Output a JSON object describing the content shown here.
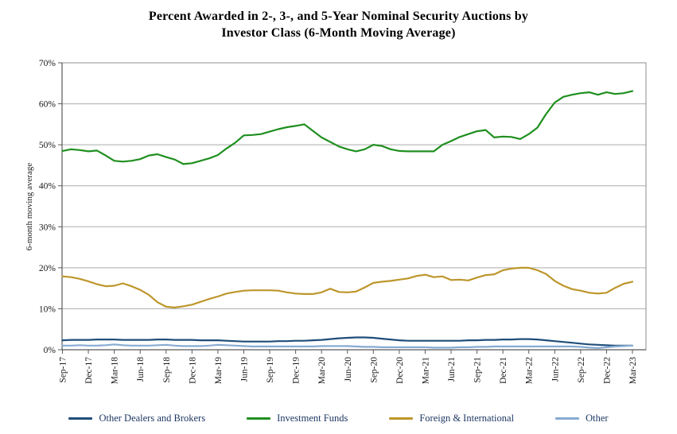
{
  "title_line1": "Percent Awarded in 2-, 3-, and 5-Year Nominal Security Auctions by",
  "title_line2": "Investor Class (6-Month Moving Average)",
  "chart_data": {
    "type": "line",
    "title": "Percent Awarded in 2-, 3-, and 5-Year Nominal Security Auctions by Investor Class (6-Month Moving Average)",
    "ylabel": "6-month moving average",
    "xlabel": "",
    "ylim": [
      0,
      70
    ],
    "y_tick_labels": [
      "0%",
      "10%",
      "20%",
      "30%",
      "40%",
      "50%",
      "60%",
      "70%"
    ],
    "x_tick_labels": [
      "Sep-17",
      "Dec-17",
      "Mar-18",
      "Jun-18",
      "Sep-18",
      "Dec-18",
      "Mar-19",
      "Jun-19",
      "Sep-19",
      "Dec-19",
      "Mar-20",
      "Jun-20",
      "Sep-20",
      "Dec-20",
      "Mar-21",
      "Jun-21",
      "Sep-21",
      "Dec-21",
      "Mar-22",
      "Jun-22",
      "Sep-22",
      "Dec-22",
      "Mar-23"
    ],
    "x_unit": "monthly (labels shown quarterly)",
    "points_per_series": 67,
    "grid": "horizontal",
    "legend_position": "bottom",
    "series": [
      {
        "name": "Other Dealers and Brokers",
        "color": "#1F4E79",
        "values": [
          2.3,
          2.4,
          2.4,
          2.4,
          2.5,
          2.5,
          2.5,
          2.4,
          2.4,
          2.4,
          2.4,
          2.5,
          2.5,
          2.4,
          2.4,
          2.4,
          2.3,
          2.3,
          2.3,
          2.2,
          2.1,
          2.0,
          2.0,
          2.0,
          2.0,
          2.1,
          2.1,
          2.2,
          2.2,
          2.3,
          2.4,
          2.6,
          2.8,
          2.9,
          3.0,
          3.0,
          2.9,
          2.7,
          2.5,
          2.3,
          2.2,
          2.2,
          2.2,
          2.2,
          2.2,
          2.2,
          2.2,
          2.3,
          2.3,
          2.4,
          2.4,
          2.5,
          2.5,
          2.6,
          2.6,
          2.5,
          2.3,
          2.1,
          1.9,
          1.7,
          1.5,
          1.3,
          1.2,
          1.1,
          1.0,
          1.0,
          1.0
        ]
      },
      {
        "name": "Investment Funds",
        "color": "#1F8F1F",
        "values": [
          48.5,
          48.9,
          48.7,
          48.4,
          48.6,
          47.4,
          46.1,
          45.9,
          46.1,
          46.5,
          47.4,
          47.7,
          47.0,
          46.4,
          45.3,
          45.5,
          46.1,
          46.7,
          47.5,
          49.1,
          50.5,
          52.3,
          52.4,
          52.6,
          53.2,
          53.8,
          54.3,
          54.6,
          55.0,
          53.4,
          51.8,
          50.7,
          49.6,
          48.9,
          48.4,
          48.9,
          50.0,
          49.7,
          48.9,
          48.5,
          48.4,
          48.4,
          48.4,
          48.4,
          50.0,
          50.9,
          51.9,
          52.6,
          53.3,
          53.6,
          51.8,
          52.0,
          51.9,
          51.4,
          52.6,
          54.2,
          57.5,
          60.3,
          61.7,
          62.2,
          62.6,
          62.8,
          62.2,
          62.8,
          62.4,
          62.6,
          63.1
        ]
      },
      {
        "name": "Foreign & International",
        "color": "#BD962B",
        "values": [
          17.9,
          17.7,
          17.3,
          16.7,
          16.0,
          15.5,
          15.6,
          16.2,
          15.5,
          14.6,
          13.4,
          11.6,
          10.5,
          10.3,
          10.6,
          11.0,
          11.7,
          12.4,
          13.0,
          13.7,
          14.1,
          14.4,
          14.5,
          14.5,
          14.5,
          14.4,
          14.0,
          13.7,
          13.6,
          13.6,
          14.0,
          14.9,
          14.1,
          14.0,
          14.2,
          15.2,
          16.3,
          16.6,
          16.8,
          17.1,
          17.4,
          18.0,
          18.3,
          17.7,
          17.9,
          17.0,
          17.1,
          16.9,
          17.6,
          18.2,
          18.4,
          19.4,
          19.8,
          20.0,
          20.0,
          19.4,
          18.5,
          16.8,
          15.6,
          14.8,
          14.4,
          13.9,
          13.7,
          13.9,
          15.1,
          16.1,
          16.6
        ]
      },
      {
        "name": "Other",
        "color": "#87ABD2",
        "values": [
          1.0,
          1.0,
          1.1,
          1.0,
          1.0,
          1.1,
          1.3,
          1.1,
          1.0,
          1.0,
          1.0,
          1.1,
          1.2,
          1.0,
          0.9,
          0.9,
          0.9,
          1.0,
          1.2,
          1.1,
          1.0,
          0.9,
          0.8,
          0.8,
          0.8,
          0.8,
          0.8,
          0.8,
          0.8,
          0.8,
          0.9,
          0.9,
          0.9,
          0.9,
          0.8,
          0.7,
          0.7,
          0.6,
          0.6,
          0.6,
          0.6,
          0.6,
          0.6,
          0.5,
          0.5,
          0.5,
          0.6,
          0.6,
          0.7,
          0.7,
          0.8,
          0.8,
          0.8,
          0.8,
          0.8,
          0.8,
          0.8,
          0.8,
          0.8,
          0.8,
          0.7,
          0.5,
          0.4,
          0.6,
          0.8,
          0.9,
          1.0
        ]
      }
    ]
  }
}
